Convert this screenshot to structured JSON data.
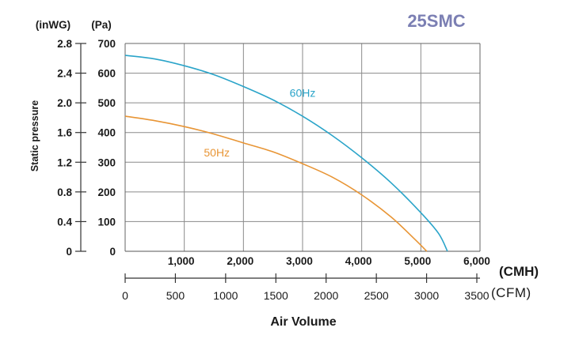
{
  "chart_data": {
    "type": "line",
    "title": "25SMC",
    "xlabel": "Air Volume",
    "ylabel": "Static pressure",
    "x_unit_primary": "(CMH)",
    "x_unit_secondary": "(CFM)",
    "y_unit_left": "(inWG)",
    "y_unit_right": "(Pa)",
    "xlim": [
      0,
      6000
    ],
    "ylim": [
      0,
      700
    ],
    "x_ticks": [
      "1,000",
      "2,000",
      "3,000",
      "4,000",
      "5,000",
      "6,000"
    ],
    "x_tick_values": [
      1000,
      2000,
      3000,
      4000,
      5000,
      6000
    ],
    "cfm_ticks": [
      "0",
      "500",
      "1000",
      "1500",
      "2000",
      "2500",
      "3000",
      "3500"
    ],
    "cfm_tick_values": [
      0,
      500,
      1000,
      1500,
      2000,
      2500,
      3000,
      3500
    ],
    "y_ticks_pa": [
      "0",
      "100",
      "200",
      "300",
      "400",
      "500",
      "600",
      "700"
    ],
    "y_tick_values": [
      0,
      100,
      200,
      300,
      400,
      500,
      600,
      700
    ],
    "y_ticks_inwg": [
      "0",
      "0.4",
      "0.8",
      "1.2",
      "1.6",
      "2.0",
      "2.4",
      "2.8"
    ],
    "grid": true,
    "series": [
      {
        "name": "60Hz",
        "color": "#2aa4c9",
        "x": [
          0,
          500,
          1000,
          1500,
          2000,
          2500,
          3000,
          3500,
          4000,
          4500,
          5000,
          5300,
          5450
        ],
        "y": [
          660,
          648,
          625,
          595,
          555,
          510,
          455,
          390,
          315,
          230,
          130,
          60,
          0
        ]
      },
      {
        "name": "50Hz",
        "color": "#e89535",
        "x": [
          0,
          500,
          1000,
          1500,
          2000,
          2500,
          3000,
          3500,
          4000,
          4500,
          4900,
          5100
        ],
        "y": [
          455,
          440,
          420,
          395,
          365,
          335,
          295,
          250,
          190,
          115,
          40,
          0
        ]
      }
    ]
  }
}
